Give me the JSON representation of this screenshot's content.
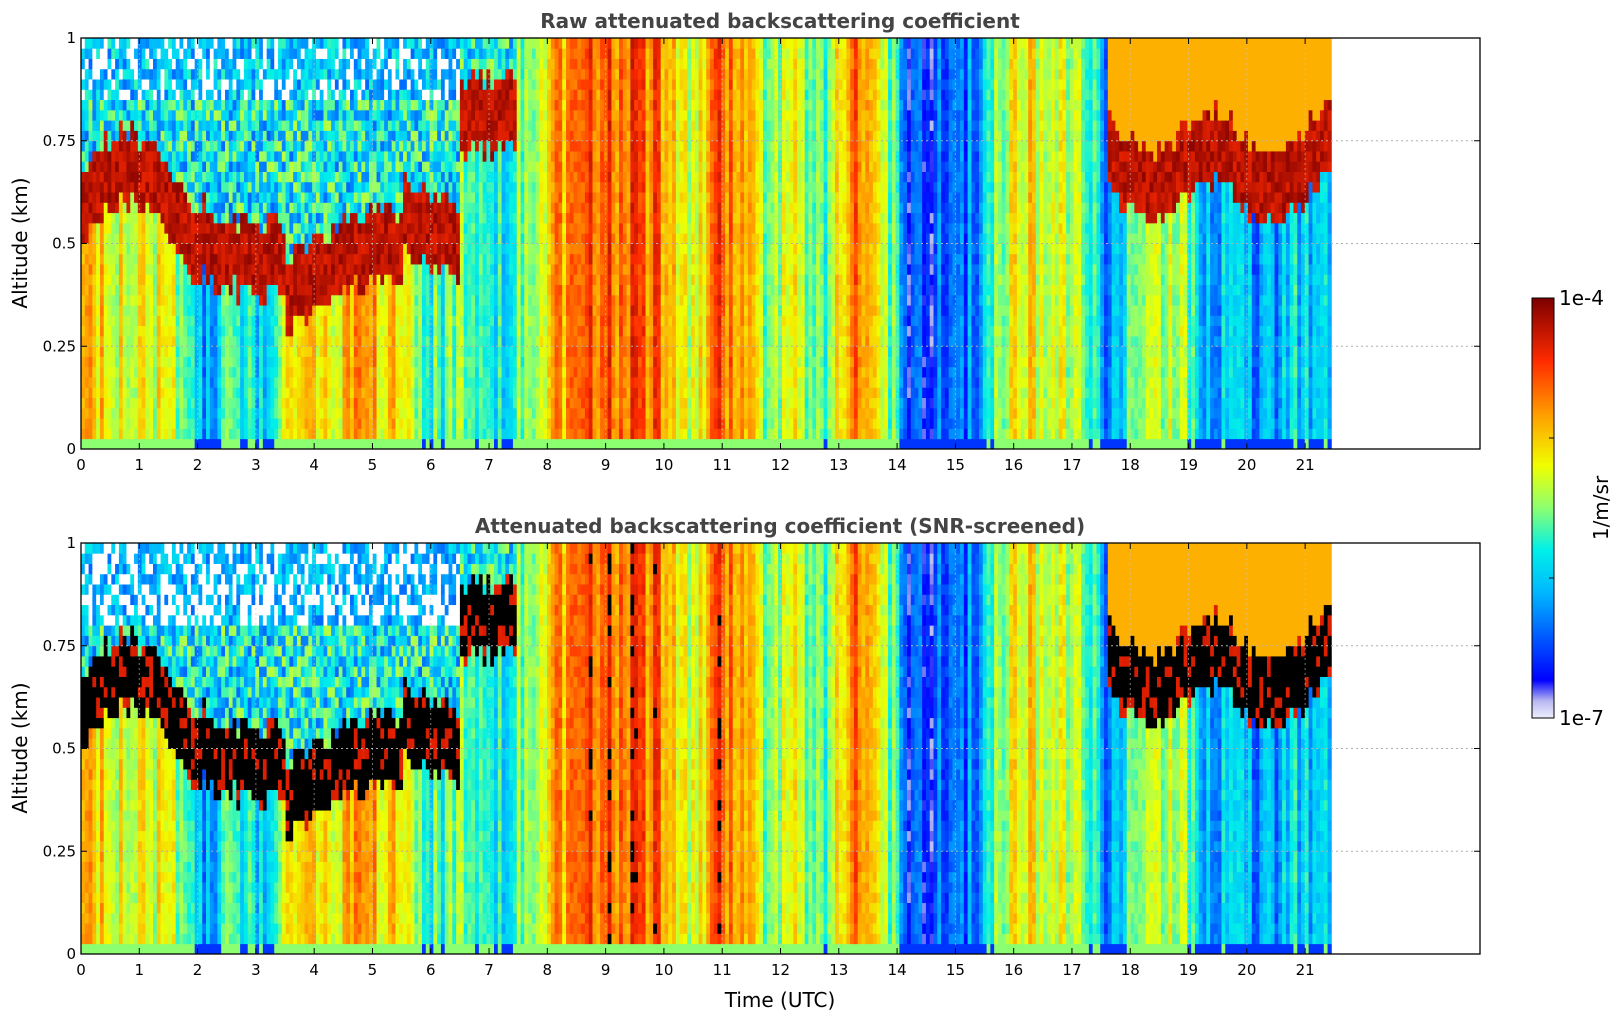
{
  "chart_data": [
    {
      "type": "heatmap",
      "title": "Raw attenuated backscattering coefficient",
      "xlabel": "",
      "ylabel": "Altitude (km)",
      "xlim": [
        0,
        24
      ],
      "ylim": [
        0,
        1
      ],
      "xticks": [
        "0",
        "1",
        "2",
        "3",
        "4",
        "5",
        "6",
        "7",
        "8",
        "9",
        "10",
        "11",
        "12",
        "13",
        "14",
        "15",
        "16",
        "17",
        "18",
        "19",
        "20",
        "21"
      ],
      "yticks": [
        "0",
        "0.25",
        "0.5",
        "0.75",
        "1"
      ],
      "data_end_time": 21.45,
      "grid": true,
      "screened": false,
      "description_profile": "log10 backscatter intensity by time; bright aerosol layer ~0.5-0.8 km before 7 UTC, low values 14-15.5 and 19-21.5 UTC"
    },
    {
      "type": "heatmap",
      "title": "Attenuated backscattering coefficient (SNR-screened)",
      "xlabel": "Time (UTC)",
      "ylabel": "Altitude (km)",
      "xlim": [
        0,
        24
      ],
      "ylim": [
        0,
        1
      ],
      "xticks": [
        "0",
        "1",
        "2",
        "3",
        "4",
        "5",
        "6",
        "7",
        "8",
        "9",
        "10",
        "11",
        "12",
        "13",
        "14",
        "15",
        "16",
        "17",
        "18",
        "19",
        "20",
        "21"
      ],
      "yticks": [
        "0",
        "0.25",
        "0.5",
        "0.75",
        "1"
      ],
      "data_end_time": 21.45,
      "grid": true,
      "screened": true
    }
  ],
  "colorbar": {
    "label": "1/m/sr",
    "max_label": "1e-4",
    "min_label": "1e-7",
    "colormap": "jet"
  }
}
